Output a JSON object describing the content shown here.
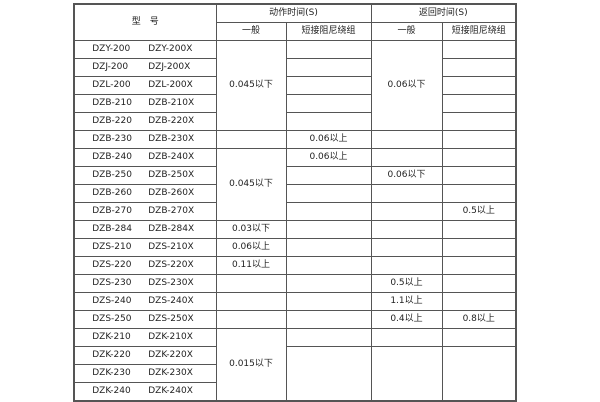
{
  "header": {
    "model": "型　号",
    "action_time": "动作时间(S)",
    "return_time": "返回时间(S)",
    "general": "一般",
    "short_winding": "短接阻尼绕组"
  },
  "rows": [
    {
      "model": [
        "DZY-200",
        "DZY-200X"
      ],
      "cells": [
        {
          "text": "0.045以下",
          "rowspan": 5
        },
        {
          "text": ""
        },
        {
          "text": "0.06以下",
          "rowspan": 5
        },
        {
          "text": ""
        }
      ]
    },
    {
      "model": [
        "DZJ-200",
        "DZJ-200X"
      ],
      "cells": [
        {
          "text": ""
        },
        {
          "text": ""
        }
      ]
    },
    {
      "model": [
        "DZL-200",
        "DZL-200X"
      ],
      "cells": [
        {
          "text": ""
        },
        {
          "text": ""
        }
      ]
    },
    {
      "model": [
        "DZB-210",
        "DZB-210X"
      ],
      "cells": [
        {
          "text": ""
        },
        {
          "text": ""
        }
      ]
    },
    {
      "model": [
        "DZB-220",
        "DZB-220X"
      ],
      "cells": [
        {
          "text": ""
        },
        {
          "text": ""
        }
      ]
    },
    {
      "model": [
        "DZB-230",
        "DZB-230X"
      ],
      "cells": [
        {
          "text": ""
        },
        {
          "text": "0.06以上"
        },
        {
          "text": ""
        },
        {
          "text": ""
        }
      ]
    },
    {
      "model": [
        "DZB-240",
        "DZB-240X"
      ],
      "cells": [
        {
          "text": "0.045以下",
          "rowspan": 4
        },
        {
          "text": "0.06以上"
        },
        {
          "text": ""
        },
        {
          "text": ""
        }
      ]
    },
    {
      "model": [
        "DZB-250",
        "DZB-250X"
      ],
      "cells": [
        {
          "text": ""
        },
        {
          "text": "0.06以下"
        },
        {
          "text": ""
        }
      ]
    },
    {
      "model": [
        "DZB-260",
        "DZB-260X"
      ],
      "cells": [
        {
          "text": ""
        },
        {
          "text": ""
        },
        {
          "text": ""
        }
      ]
    },
    {
      "model": [
        "DZB-270",
        "DZB-270X"
      ],
      "cells": [
        {
          "text": ""
        },
        {
          "text": ""
        },
        {
          "text": "0.5以上"
        }
      ]
    },
    {
      "model": [
        "DZB-284",
        "DZB-284X"
      ],
      "cells": [
        {
          "text": "0.03以下"
        },
        {
          "text": ""
        },
        {
          "text": ""
        },
        {
          "text": ""
        }
      ]
    },
    {
      "model": [
        "DZS-210",
        "DZS-210X"
      ],
      "cells": [
        {
          "text": "0.06以上"
        },
        {
          "text": ""
        },
        {
          "text": ""
        },
        {
          "text": ""
        }
      ]
    },
    {
      "model": [
        "DZS-220",
        "DZS-220X"
      ],
      "cells": [
        {
          "text": "0.11以上"
        },
        {
          "text": ""
        },
        {
          "text": ""
        },
        {
          "text": ""
        }
      ]
    },
    {
      "model": [
        "DZS-230",
        "DZS-230X"
      ],
      "cells": [
        {
          "text": ""
        },
        {
          "text": ""
        },
        {
          "text": "0.5以上"
        },
        {
          "text": ""
        }
      ]
    },
    {
      "model": [
        "DZS-240",
        "DZS-240X"
      ],
      "cells": [
        {
          "text": ""
        },
        {
          "text": ""
        },
        {
          "text": "1.1以上"
        },
        {
          "text": ""
        }
      ]
    },
    {
      "model": [
        "DZS-250",
        "DZS-250X"
      ],
      "cells": [
        {
          "text": ""
        },
        {
          "text": ""
        },
        {
          "text": "0.4以上"
        },
        {
          "text": "0.8以上"
        }
      ]
    },
    {
      "model": [
        "DZK-210",
        "DZK-210X"
      ],
      "cells": [
        {
          "text": "0.015以下",
          "rowspan": 4
        },
        {
          "text": ""
        },
        {
          "text": ""
        },
        {
          "text": ""
        }
      ]
    },
    {
      "model": [
        "DZK-220",
        "DZK-220X"
      ],
      "cells": [
        {
          "text": "",
          "rowspan": 3
        },
        {
          "text": "",
          "rowspan": 3
        },
        {
          "text": "",
          "rowspan": 3
        }
      ]
    },
    {
      "model": [
        "DZK-230",
        "DZK-230X"
      ],
      "cells": []
    },
    {
      "model": [
        "DZK-240",
        "DZK-240X"
      ],
      "cells": []
    }
  ]
}
